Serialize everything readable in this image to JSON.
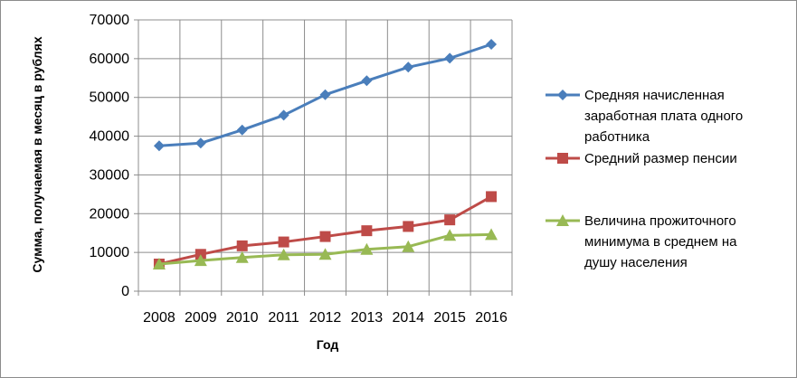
{
  "chart_data": {
    "type": "line",
    "title": "",
    "xlabel": "Год",
    "ylabel": "Сумма, получаемая в месяц в рублях",
    "categories": [
      "2008",
      "2009",
      "2010",
      "2011",
      "2012",
      "2013",
      "2014",
      "2015",
      "2016"
    ],
    "ylim": [
      0,
      70000
    ],
    "yticks": [
      "0",
      "10000",
      "20000",
      "30000",
      "40000",
      "50000",
      "60000",
      "70000"
    ],
    "grid": true,
    "legend_position": "right",
    "series": [
      {
        "name": "Средняя начисленная заработная плата одного работника",
        "legend_lines": [
          "Средняя начисленная",
          "заработная плата одного",
          "работника"
        ],
        "color": "#4a7ebb",
        "marker": "diamond",
        "values": [
          37500,
          38200,
          41600,
          45400,
          50700,
          54300,
          57800,
          60100,
          63700
        ]
      },
      {
        "name": "Средний размер пенсии",
        "legend_lines": [
          "Средний размер пенсии"
        ],
        "color": "#be4b48",
        "marker": "square",
        "values": [
          7000,
          9500,
          11700,
          12700,
          14100,
          15600,
          16700,
          18400,
          24400
        ]
      },
      {
        "name": "Величина прожиточного минимума в среднем на душу населения",
        "legend_lines": [
          "Величина прожиточного",
          "минимума в среднем на",
          "душу населения"
        ],
        "color": "#98b954",
        "marker": "triangle",
        "values": [
          7000,
          7900,
          8700,
          9400,
          9500,
          10800,
          11500,
          14400,
          14600
        ]
      }
    ]
  }
}
